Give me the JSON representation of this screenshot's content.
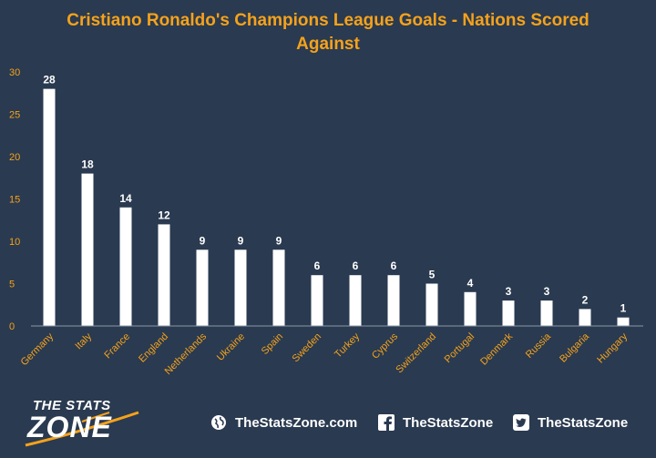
{
  "chart_data": {
    "type": "bar",
    "title": "Cristiano Ronaldo's Champions League Goals - Nations Scored Against",
    "categories": [
      "Germany",
      "Italy",
      "France",
      "England",
      "Netherlands",
      "Ukraine",
      "Spain",
      "Sweden",
      "Turkey",
      "Cyprus",
      "Switzerland",
      "Portugal",
      "Denmark",
      "Russia",
      "Bulgaria",
      "Hungary"
    ],
    "values": [
      28,
      18,
      14,
      12,
      9,
      9,
      9,
      6,
      6,
      6,
      5,
      4,
      3,
      3,
      2,
      1
    ],
    "ylim": [
      0,
      30
    ],
    "yticks": [
      0,
      5,
      10,
      15,
      20,
      25,
      30
    ],
    "grid": false,
    "colors": {
      "bar": "#ffffff",
      "background": "#2a3a50",
      "accent": "#f5a21b"
    }
  },
  "footer": {
    "logo_top": "THE STATS",
    "logo_bottom": "ZONE",
    "website": "TheStatsZone.com",
    "facebook": "TheStatsZone",
    "twitter": "TheStatsZone",
    "icons": [
      "globe-icon",
      "facebook-icon",
      "twitter-icon"
    ]
  }
}
